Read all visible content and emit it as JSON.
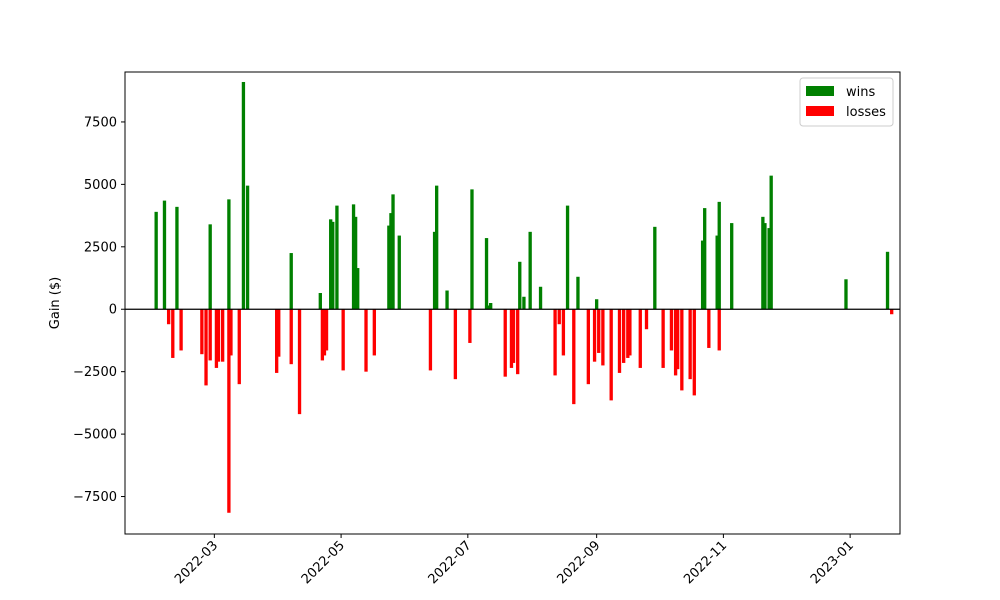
{
  "chart_data": {
    "type": "bar",
    "title": "",
    "xlabel": "",
    "ylabel": "Gain ($)",
    "ylim": [
      -9000,
      9500
    ],
    "xlim": [
      "2022-01-17",
      "2023-01-25"
    ],
    "yticks": [
      -7500,
      -5000,
      -2500,
      0,
      2500,
      5000,
      7500
    ],
    "ytick_labels": [
      "−7500",
      "−5000",
      "−2500",
      "0",
      "2500",
      "5000",
      "7500"
    ],
    "xticks": [
      "2022-03-01",
      "2022-05-01",
      "2022-07-01",
      "2022-09-01",
      "2022-11-01",
      "2023-01-01"
    ],
    "xtick_labels": [
      "2022-03",
      "2022-05",
      "2022-07",
      "2022-09",
      "2022-11",
      "2023-01"
    ],
    "grid": false,
    "legend": "top-right",
    "colors": {
      "wins": "#008000",
      "losses": "#ff0000"
    },
    "series": [
      {
        "name": "wins",
        "color": "#008000",
        "points": [
          [
            "2022-02-01",
            3900
          ],
          [
            "2022-02-05",
            4350
          ],
          [
            "2022-02-11",
            4100
          ],
          [
            "2022-02-27",
            3400
          ],
          [
            "2022-03-08",
            4400
          ],
          [
            "2022-03-15",
            9100
          ],
          [
            "2022-03-17",
            4950
          ],
          [
            "2022-04-07",
            2250
          ],
          [
            "2022-04-21",
            650
          ],
          [
            "2022-04-26",
            3600
          ],
          [
            "2022-04-27",
            3500
          ],
          [
            "2022-04-29",
            4150
          ],
          [
            "2022-05-07",
            4200
          ],
          [
            "2022-05-08",
            3700
          ],
          [
            "2022-05-09",
            1650
          ],
          [
            "2022-05-24",
            3350
          ],
          [
            "2022-05-25",
            3850
          ],
          [
            "2022-05-26",
            4600
          ],
          [
            "2022-05-29",
            2950
          ],
          [
            "2022-06-15",
            3100
          ],
          [
            "2022-06-16",
            4950
          ],
          [
            "2022-06-21",
            750
          ],
          [
            "2022-07-03",
            4800
          ],
          [
            "2022-07-10",
            2850
          ],
          [
            "2022-07-11",
            150
          ],
          [
            "2022-07-12",
            250
          ],
          [
            "2022-07-26",
            1900
          ],
          [
            "2022-07-28",
            500
          ],
          [
            "2022-07-31",
            3100
          ],
          [
            "2022-08-05",
            900
          ],
          [
            "2022-08-18",
            4150
          ],
          [
            "2022-08-23",
            1300
          ],
          [
            "2022-09-01",
            400
          ],
          [
            "2022-09-29",
            3300
          ],
          [
            "2022-10-22",
            2750
          ],
          [
            "2022-10-23",
            4050
          ],
          [
            "2022-10-29",
            2950
          ],
          [
            "2022-10-30",
            4300
          ],
          [
            "2022-11-05",
            3450
          ],
          [
            "2022-11-20",
            3700
          ],
          [
            "2022-11-21",
            3450
          ],
          [
            "2022-11-23",
            3250
          ],
          [
            "2022-11-24",
            5350
          ],
          [
            "2022-12-30",
            1200
          ],
          [
            "2023-01-19",
            2300
          ]
        ]
      },
      {
        "name": "losses",
        "color": "#ff0000",
        "points": [
          [
            "2022-02-07",
            -600
          ],
          [
            "2022-02-09",
            -1950
          ],
          [
            "2022-02-13",
            -1650
          ],
          [
            "2022-02-23",
            -1800
          ],
          [
            "2022-02-25",
            -3050
          ],
          [
            "2022-02-27",
            -2050
          ],
          [
            "2022-03-02",
            -2350
          ],
          [
            "2022-03-03",
            -2100
          ],
          [
            "2022-03-05",
            -2100
          ],
          [
            "2022-03-08",
            -8150
          ],
          [
            "2022-03-09",
            -1850
          ],
          [
            "2022-03-13",
            -3000
          ],
          [
            "2022-03-31",
            -2550
          ],
          [
            "2022-04-01",
            -1900
          ],
          [
            "2022-04-07",
            -2200
          ],
          [
            "2022-04-11",
            -4200
          ],
          [
            "2022-04-22",
            -2050
          ],
          [
            "2022-04-23",
            -1850
          ],
          [
            "2022-04-24",
            -1650
          ],
          [
            "2022-05-02",
            -2450
          ],
          [
            "2022-05-13",
            -2500
          ],
          [
            "2022-05-17",
            -1850
          ],
          [
            "2022-06-13",
            -2450
          ],
          [
            "2022-06-25",
            -2800
          ],
          [
            "2022-07-02",
            -1350
          ],
          [
            "2022-07-19",
            -2700
          ],
          [
            "2022-07-22",
            -2350
          ],
          [
            "2022-07-23",
            -2150
          ],
          [
            "2022-07-25",
            -2600
          ],
          [
            "2022-08-12",
            -2650
          ],
          [
            "2022-08-14",
            -600
          ],
          [
            "2022-08-16",
            -1850
          ],
          [
            "2022-08-21",
            -3800
          ],
          [
            "2022-08-28",
            -3000
          ],
          [
            "2022-08-31",
            -2100
          ],
          [
            "2022-09-02",
            -1750
          ],
          [
            "2022-09-04",
            -2250
          ],
          [
            "2022-09-08",
            -3650
          ],
          [
            "2022-09-12",
            -2550
          ],
          [
            "2022-09-14",
            -2150
          ],
          [
            "2022-09-16",
            -1950
          ],
          [
            "2022-09-17",
            -1850
          ],
          [
            "2022-09-22",
            -2350
          ],
          [
            "2022-09-25",
            -800
          ],
          [
            "2022-10-03",
            -2350
          ],
          [
            "2022-10-07",
            -1650
          ],
          [
            "2022-10-09",
            -2650
          ],
          [
            "2022-10-10",
            -2400
          ],
          [
            "2022-10-12",
            -3250
          ],
          [
            "2022-10-16",
            -2800
          ],
          [
            "2022-10-18",
            -3450
          ],
          [
            "2022-10-25",
            -1550
          ],
          [
            "2022-10-30",
            -1650
          ],
          [
            "2023-01-21",
            -200
          ]
        ]
      }
    ]
  }
}
